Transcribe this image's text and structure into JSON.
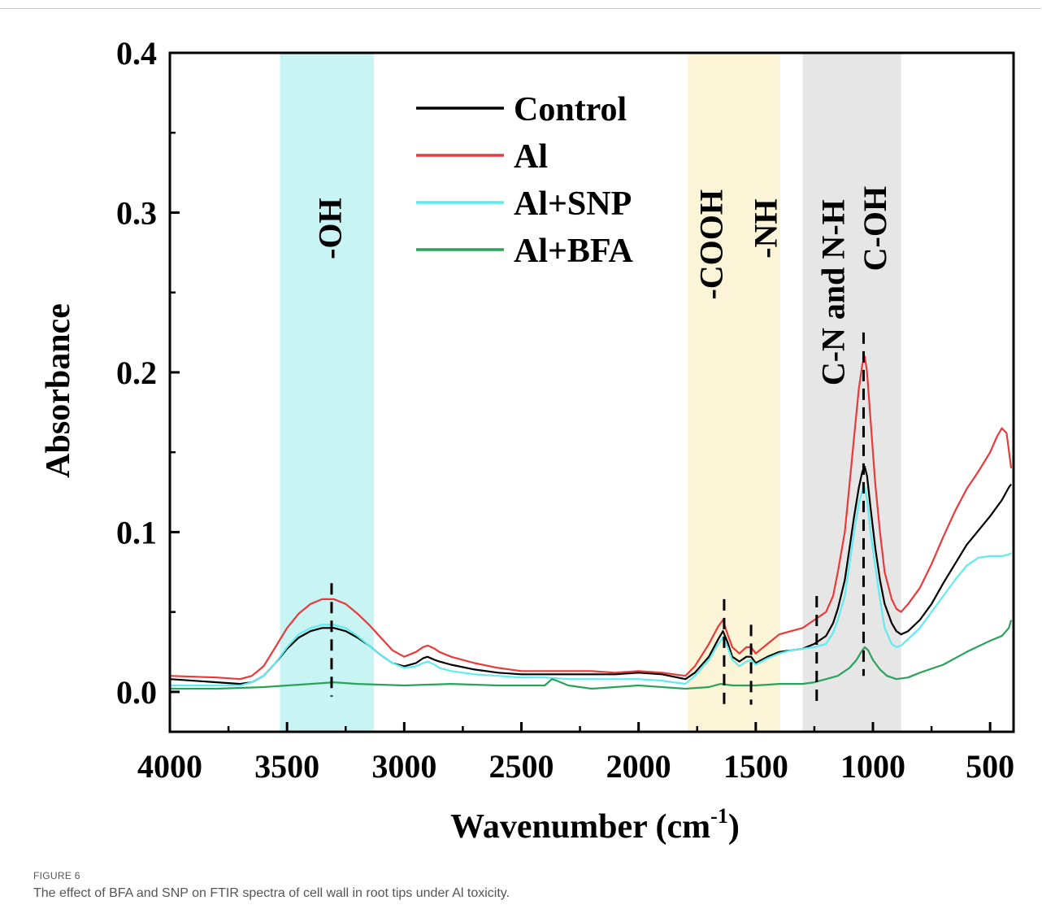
{
  "figure": {
    "label": "FIGURE 6",
    "caption": "The effect of BFA and SNP on FTIR spectra of cell wall in root tips under Al toxicity."
  },
  "chart_data": {
    "type": "line",
    "xlabel": "Wavenumber (cm",
    "xlabel_sup": "-1",
    "xlabel_end": ")",
    "ylabel": "Absorbance",
    "xlim": [
      4000,
      400
    ],
    "ylim": [
      -0.025,
      0.4
    ],
    "x_reversed": true,
    "xticks": [
      4000,
      3500,
      3000,
      2500,
      2000,
      1500,
      1000,
      500
    ],
    "yticks": [
      0.0,
      0.1,
      0.2,
      0.3,
      0.4
    ],
    "ytick_labels": [
      "0.0",
      "0.1",
      "0.2",
      "0.3",
      "0.4"
    ],
    "legend_position": "top-center",
    "regions": [
      {
        "label": "-OH",
        "from": 3530,
        "to": 3130,
        "color": "#c8f4f4",
        "dashed_at": 3310
      },
      {
        "label": "-COOH",
        "from": 1790,
        "to": 1395,
        "color": "#fbf4d6",
        "dashed_at": 1635
      },
      {
        "label": "-NH",
        "from": 1790,
        "to": 1395,
        "color": "#fbf4d6",
        "dashed_at": 1520
      },
      {
        "label": "C-N and N-H",
        "from": 1300,
        "to": 880,
        "color": "#e6e6e6",
        "dashed_at": 1240
      },
      {
        "label": "C-OH",
        "from": 1300,
        "to": 880,
        "color": "#e6e6e6",
        "dashed_at": 1040
      }
    ],
    "series": [
      {
        "name": "Control",
        "color": "#000000",
        "x": [
          4000,
          3800,
          3700,
          3650,
          3600,
          3550,
          3500,
          3450,
          3400,
          3350,
          3300,
          3250,
          3200,
          3150,
          3100,
          3050,
          3000,
          2950,
          2920,
          2900,
          2870,
          2850,
          2800,
          2700,
          2600,
          2500,
          2400,
          2300,
          2200,
          2100,
          2000,
          1900,
          1800,
          1760,
          1700,
          1660,
          1640,
          1620,
          1600,
          1570,
          1540,
          1520,
          1500,
          1450,
          1400,
          1350,
          1300,
          1250,
          1200,
          1170,
          1150,
          1120,
          1100,
          1080,
          1060,
          1045,
          1035,
          1025,
          1010,
          990,
          970,
          950,
          920,
          900,
          880,
          850,
          800,
          750,
          700,
          650,
          600,
          550,
          500,
          450,
          420,
          410
        ],
        "y": [
          0.008,
          0.006,
          0.005,
          0.006,
          0.01,
          0.018,
          0.027,
          0.034,
          0.038,
          0.04,
          0.04,
          0.038,
          0.034,
          0.029,
          0.023,
          0.018,
          0.016,
          0.018,
          0.021,
          0.022,
          0.02,
          0.019,
          0.017,
          0.014,
          0.012,
          0.011,
          0.011,
          0.011,
          0.011,
          0.011,
          0.012,
          0.011,
          0.008,
          0.012,
          0.022,
          0.033,
          0.038,
          0.031,
          0.022,
          0.019,
          0.022,
          0.022,
          0.018,
          0.022,
          0.025,
          0.026,
          0.027,
          0.03,
          0.035,
          0.043,
          0.052,
          0.07,
          0.09,
          0.11,
          0.128,
          0.138,
          0.141,
          0.135,
          0.115,
          0.09,
          0.07,
          0.055,
          0.043,
          0.038,
          0.036,
          0.038,
          0.045,
          0.055,
          0.068,
          0.08,
          0.092,
          0.101,
          0.11,
          0.12,
          0.128,
          0.13
        ]
      },
      {
        "name": "Al",
        "color": "#e8393b",
        "x": [
          4000,
          3800,
          3700,
          3650,
          3600,
          3550,
          3500,
          3450,
          3400,
          3350,
          3300,
          3250,
          3200,
          3150,
          3100,
          3050,
          3000,
          2950,
          2920,
          2900,
          2870,
          2850,
          2800,
          2700,
          2600,
          2500,
          2400,
          2300,
          2200,
          2100,
          2000,
          1900,
          1800,
          1760,
          1700,
          1660,
          1640,
          1620,
          1600,
          1570,
          1540,
          1520,
          1500,
          1450,
          1400,
          1350,
          1300,
          1250,
          1200,
          1170,
          1150,
          1120,
          1100,
          1080,
          1060,
          1045,
          1035,
          1025,
          1010,
          990,
          970,
          950,
          920,
          900,
          880,
          850,
          800,
          750,
          700,
          650,
          600,
          550,
          500,
          470,
          450,
          430,
          410
        ],
        "y": [
          0.01,
          0.009,
          0.008,
          0.01,
          0.016,
          0.028,
          0.04,
          0.049,
          0.055,
          0.058,
          0.058,
          0.055,
          0.049,
          0.042,
          0.034,
          0.026,
          0.022,
          0.025,
          0.028,
          0.029,
          0.027,
          0.025,
          0.022,
          0.018,
          0.015,
          0.013,
          0.013,
          0.013,
          0.013,
          0.012,
          0.013,
          0.012,
          0.01,
          0.016,
          0.03,
          0.041,
          0.045,
          0.036,
          0.028,
          0.024,
          0.028,
          0.028,
          0.024,
          0.03,
          0.036,
          0.038,
          0.04,
          0.045,
          0.05,
          0.06,
          0.075,
          0.1,
          0.13,
          0.16,
          0.19,
          0.205,
          0.21,
          0.2,
          0.17,
          0.13,
          0.1,
          0.075,
          0.058,
          0.052,
          0.05,
          0.055,
          0.065,
          0.08,
          0.097,
          0.113,
          0.127,
          0.138,
          0.15,
          0.16,
          0.165,
          0.162,
          0.14
        ]
      },
      {
        "name": "Al+SNP",
        "color": "#5eecf0",
        "x": [
          4000,
          3800,
          3700,
          3650,
          3600,
          3550,
          3500,
          3450,
          3400,
          3350,
          3300,
          3250,
          3200,
          3150,
          3100,
          3050,
          3000,
          2950,
          2920,
          2900,
          2870,
          2850,
          2800,
          2700,
          2600,
          2500,
          2400,
          2300,
          2200,
          2100,
          2000,
          1900,
          1800,
          1760,
          1700,
          1660,
          1640,
          1620,
          1600,
          1570,
          1540,
          1520,
          1500,
          1450,
          1400,
          1350,
          1300,
          1250,
          1200,
          1170,
          1150,
          1120,
          1100,
          1080,
          1060,
          1045,
          1035,
          1025,
          1010,
          990,
          970,
          950,
          920,
          900,
          880,
          850,
          800,
          750,
          700,
          650,
          600,
          550,
          500,
          450,
          420,
          410
        ],
        "y": [
          0.004,
          0.004,
          0.004,
          0.006,
          0.01,
          0.018,
          0.028,
          0.036,
          0.04,
          0.042,
          0.042,
          0.04,
          0.035,
          0.029,
          0.023,
          0.018,
          0.015,
          0.016,
          0.018,
          0.019,
          0.017,
          0.015,
          0.013,
          0.011,
          0.01,
          0.009,
          0.009,
          0.008,
          0.008,
          0.008,
          0.008,
          0.007,
          0.005,
          0.01,
          0.02,
          0.03,
          0.034,
          0.028,
          0.02,
          0.016,
          0.019,
          0.02,
          0.017,
          0.021,
          0.024,
          0.026,
          0.027,
          0.028,
          0.03,
          0.037,
          0.045,
          0.06,
          0.08,
          0.1,
          0.118,
          0.126,
          0.128,
          0.12,
          0.1,
          0.078,
          0.058,
          0.04,
          0.03,
          0.028,
          0.029,
          0.033,
          0.04,
          0.05,
          0.06,
          0.07,
          0.079,
          0.084,
          0.085,
          0.085,
          0.086,
          0.087
        ]
      },
      {
        "name": "Al+BFA",
        "color": "#2aa35a",
        "x": [
          4000,
          3800,
          3600,
          3400,
          3300,
          3200,
          3000,
          2800,
          2600,
          2400,
          2370,
          2350,
          2300,
          2200,
          2100,
          2000,
          1900,
          1800,
          1700,
          1650,
          1600,
          1500,
          1400,
          1300,
          1250,
          1200,
          1150,
          1100,
          1070,
          1050,
          1035,
          1020,
          1000,
          970,
          940,
          900,
          850,
          800,
          700,
          600,
          500,
          450,
          420,
          410
        ],
        "y": [
          0.002,
          0.002,
          0.003,
          0.005,
          0.006,
          0.005,
          0.004,
          0.005,
          0.004,
          0.004,
          0.008,
          0.007,
          0.004,
          0.002,
          0.003,
          0.004,
          0.003,
          0.002,
          0.003,
          0.005,
          0.004,
          0.004,
          0.005,
          0.005,
          0.006,
          0.008,
          0.01,
          0.015,
          0.02,
          0.025,
          0.028,
          0.026,
          0.02,
          0.014,
          0.01,
          0.008,
          0.009,
          0.012,
          0.017,
          0.025,
          0.032,
          0.035,
          0.04,
          0.045
        ]
      }
    ]
  }
}
